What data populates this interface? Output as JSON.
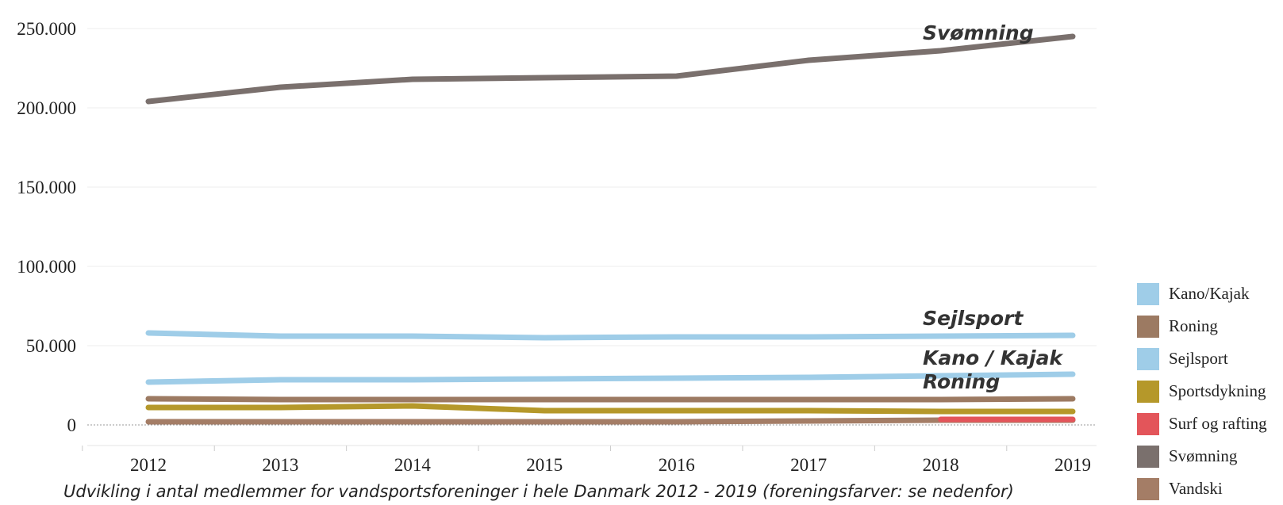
{
  "chart_data": {
    "type": "line",
    "title": "",
    "xlabel": "",
    "ylabel": "",
    "x": [
      "2012",
      "2013",
      "2014",
      "2015",
      "2016",
      "2017",
      "2018",
      "2019"
    ],
    "y_ticks": [
      "0",
      "50.000",
      "100.000",
      "150.000",
      "200.000",
      "250.000"
    ],
    "y_tick_values": [
      0,
      50000,
      100000,
      150000,
      200000,
      250000
    ],
    "ylim": [
      -5000,
      255000
    ],
    "grid": true,
    "legend_position": "right",
    "series": [
      {
        "name": "Kano/Kajak",
        "color": "#9fcde8",
        "values": [
          27000,
          28500,
          28500,
          29000,
          29500,
          30000,
          31000,
          32000
        ]
      },
      {
        "name": "Roning",
        "color": "#9c7a62",
        "values": [
          16500,
          16000,
          16000,
          16000,
          16000,
          16000,
          16000,
          16500
        ]
      },
      {
        "name": "Sejlsport",
        "color": "#9fcde8",
        "values": [
          58000,
          56000,
          56000,
          55000,
          55500,
          55500,
          56000,
          56500
        ]
      },
      {
        "name": "Sportsdykning",
        "color": "#b5982a",
        "values": [
          11000,
          11000,
          12000,
          9000,
          9000,
          9000,
          8500,
          8500
        ]
      },
      {
        "name": "Surf og rafting",
        "color": "#e3555a",
        "values": [
          null,
          null,
          null,
          null,
          null,
          null,
          3500,
          3500
        ]
      },
      {
        "name": "Svømning",
        "color": "#7a706d",
        "values": [
          204000,
          213000,
          218000,
          219000,
          220000,
          230000,
          236000,
          245000
        ]
      },
      {
        "name": "Vandski",
        "color": "#a47d66",
        "values": [
          2000,
          2000,
          2000,
          2000,
          2000,
          2500,
          3000,
          3000
        ]
      }
    ],
    "annotations": [
      {
        "text": "Svømning",
        "series": "Svømning"
      },
      {
        "text": "Sejlsport",
        "series": "Sejlsport"
      },
      {
        "text": "Kano / Kajak",
        "series": "Kano/Kajak"
      },
      {
        "text": "Roning",
        "series": "Roning"
      }
    ],
    "caption": "Udvikling i antal medlemmer for vandsportsforeninger i hele Danmark 2012 - 2019 (foreningsfarver: se nedenfor)"
  }
}
